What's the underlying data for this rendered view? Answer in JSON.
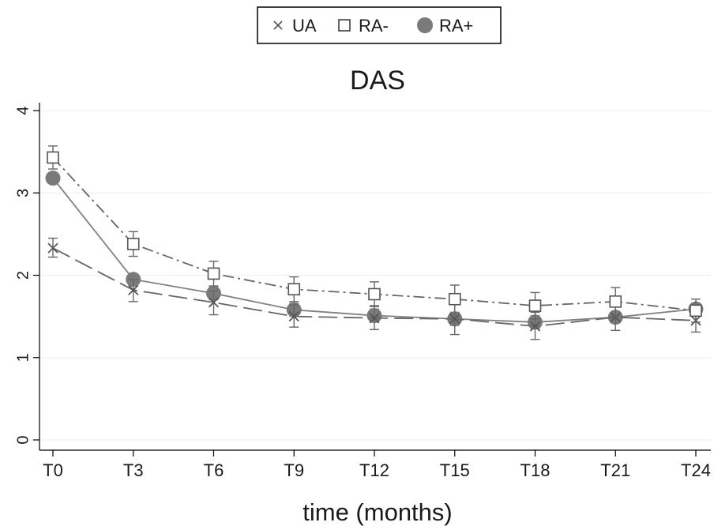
{
  "chart_data": {
    "type": "line",
    "title": "DAS",
    "xlabel": "time (months)",
    "ylabel": "",
    "categories": [
      "T0",
      "T3",
      "T6",
      "T9",
      "T12",
      "T15",
      "T18",
      "T21",
      "T24"
    ],
    "ylim": [
      0,
      4
    ],
    "yticks": [
      "0",
      "1",
      "2",
      "3",
      "4"
    ],
    "grid": true,
    "legend_position": "top-center",
    "error_bars": true,
    "series": [
      {
        "name": "UA",
        "marker": "x",
        "line_style": "long-dash",
        "color": "#666666",
        "values": [
          2.33,
          1.82,
          1.67,
          1.5,
          1.48,
          1.47,
          1.38,
          1.49,
          1.45
        ],
        "err_low": [
          2.22,
          1.68,
          1.52,
          1.37,
          1.34,
          1.28,
          1.22,
          1.33,
          1.31
        ],
        "err_high": [
          2.45,
          1.95,
          1.81,
          1.64,
          1.63,
          1.65,
          1.55,
          1.65,
          1.6
        ]
      },
      {
        "name": "RA-",
        "marker": "open-square",
        "line_style": "dash-dot",
        "color": "#666666",
        "values": [
          3.43,
          2.38,
          2.02,
          1.83,
          1.77,
          1.71,
          1.63,
          1.68,
          1.57
        ],
        "err_low": [
          3.29,
          2.23,
          1.87,
          1.68,
          1.62,
          1.54,
          1.47,
          1.5,
          1.43
        ],
        "err_high": [
          3.57,
          2.53,
          2.17,
          1.98,
          1.92,
          1.88,
          1.79,
          1.85,
          1.71
        ]
      },
      {
        "name": "RA+",
        "marker": "filled-circle",
        "line_style": "solid",
        "color": "#808080",
        "values": [
          3.18,
          1.95,
          1.78,
          1.58,
          1.51,
          1.47,
          1.43,
          1.49,
          1.59
        ],
        "err_low": [
          3.12,
          1.88,
          1.7,
          1.5,
          1.43,
          1.39,
          1.35,
          1.42,
          1.52
        ],
        "err_high": [
          3.24,
          2.02,
          1.86,
          1.66,
          1.59,
          1.55,
          1.51,
          1.56,
          1.66
        ]
      }
    ]
  }
}
